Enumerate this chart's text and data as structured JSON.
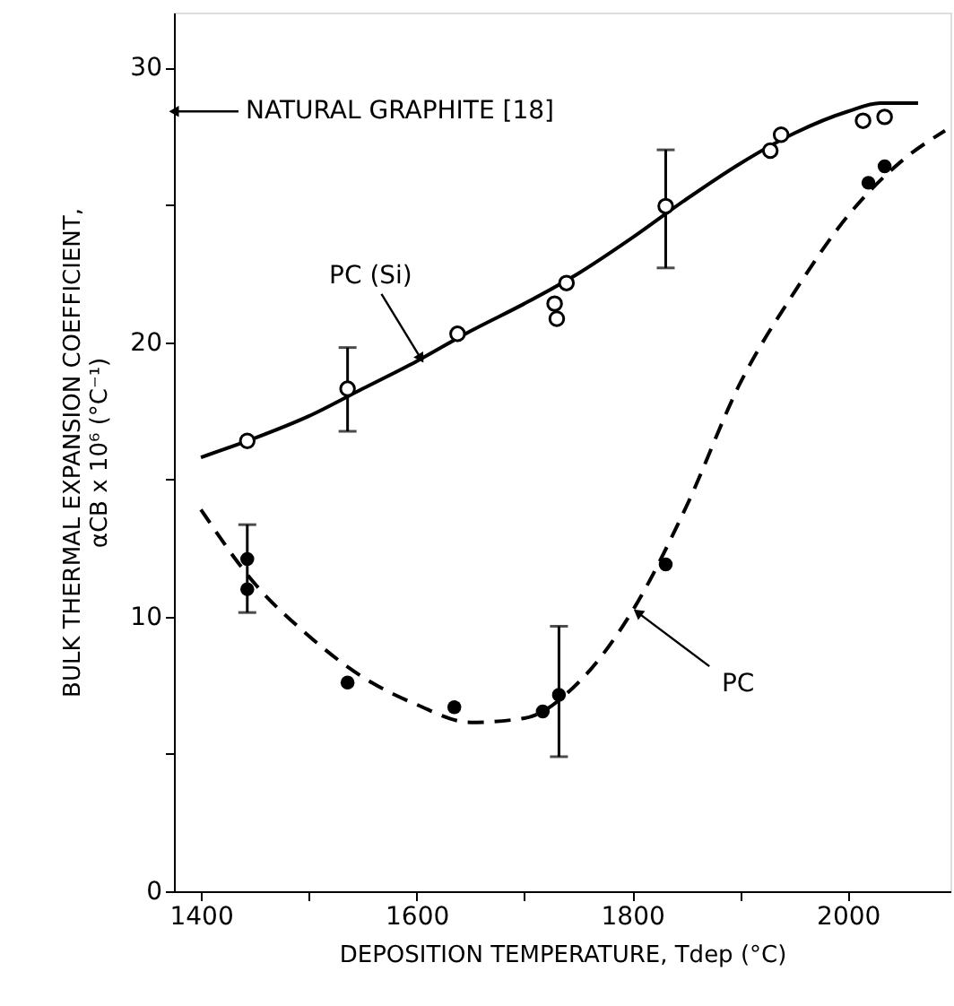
{
  "chart_data": {
    "type": "scatter",
    "xlabel": "DEPOSITION TEMPERATURE, Tdep (°C)",
    "ylabel": "BULK THERMAL EXPANSION COEFFICIENT,\nαCB x 10⁶ (°C⁻¹)",
    "xlim": [
      1375,
      2095
    ],
    "ylim": [
      0,
      32
    ],
    "xticks": [
      1400,
      {
        "value": 1500,
        "label": null
      },
      1600,
      {
        "value": 1700,
        "label": null
      },
      1800,
      {
        "value": 1900,
        "label": null
      },
      2000
    ],
    "yticks": [
      0,
      {
        "value": 5,
        "label": null
      },
      10,
      {
        "value": 15,
        "label": null
      },
      20,
      {
        "value": 25,
        "label": null
      },
      30
    ],
    "grid": false,
    "series": [
      {
        "type": "line",
        "line_style": "solid",
        "color": "#000000",
        "x": [
          1400,
          1450,
          1500,
          1550,
          1600,
          1650,
          1700,
          1750,
          1800,
          1850,
          1900,
          1950,
          2000,
          2030,
          2065
        ],
        "values": [
          15.8,
          16.5,
          17.3,
          18.3,
          19.3,
          20.4,
          21.4,
          22.5,
          23.8,
          25.2,
          26.5,
          27.6,
          28.4,
          28.7,
          28.7
        ]
      },
      {
        "marker": "circle",
        "color": "#000000",
        "x": [
          1443,
          1536,
          1638,
          1728,
          1730,
          1739,
          1831,
          1928,
          1938,
          2014,
          2034
        ],
        "values": [
          16.4,
          18.3,
          20.3,
          21.4,
          20.85,
          22.15,
          24.95,
          26.97,
          27.55,
          28.06,
          28.2
        ],
        "errors": [
          null,
          [
            16.75,
            19.8
          ],
          null,
          null,
          null,
          null,
          [
            22.7,
            27.0
          ],
          null,
          null,
          null,
          null
        ]
      },
      {
        "type": "line",
        "line_style": "dashed",
        "color": "#000000",
        "x": [
          1400,
          1450,
          1500,
          1550,
          1600,
          1650,
          1700,
          1750,
          1800,
          1850,
          1900,
          1950,
          2000,
          2050,
          2090
        ],
        "values": [
          13.9,
          11.2,
          9.3,
          7.8,
          6.8,
          6.15,
          6.3,
          7.6,
          10.2,
          14.0,
          18.5,
          21.8,
          24.6,
          26.6,
          27.7
        ]
      },
      {
        "marker": "circle",
        "color": "#000000",
        "x": [
          1443,
          1443,
          1536,
          1635,
          1717,
          1732,
          1831,
          2019,
          2034
        ],
        "values": [
          12.1,
          11.0,
          7.6,
          6.7,
          6.55,
          7.15,
          11.9,
          25.8,
          26.4
        ],
        "errors": [
          [
            10.15,
            13.35
          ],
          null,
          null,
          null,
          null,
          [
            4.9,
            9.65
          ],
          null,
          null,
          null
        ]
      }
    ],
    "annotations": [
      {
        "text": "NATURAL GRAPHITE [18]",
        "x": 1375,
        "y": 28.4
      },
      {
        "text": "PC (Si)",
        "x": 1604,
        "y": 19.4
      },
      {
        "text": "PC",
        "x": 1805,
        "y": 10.15
      }
    ]
  }
}
